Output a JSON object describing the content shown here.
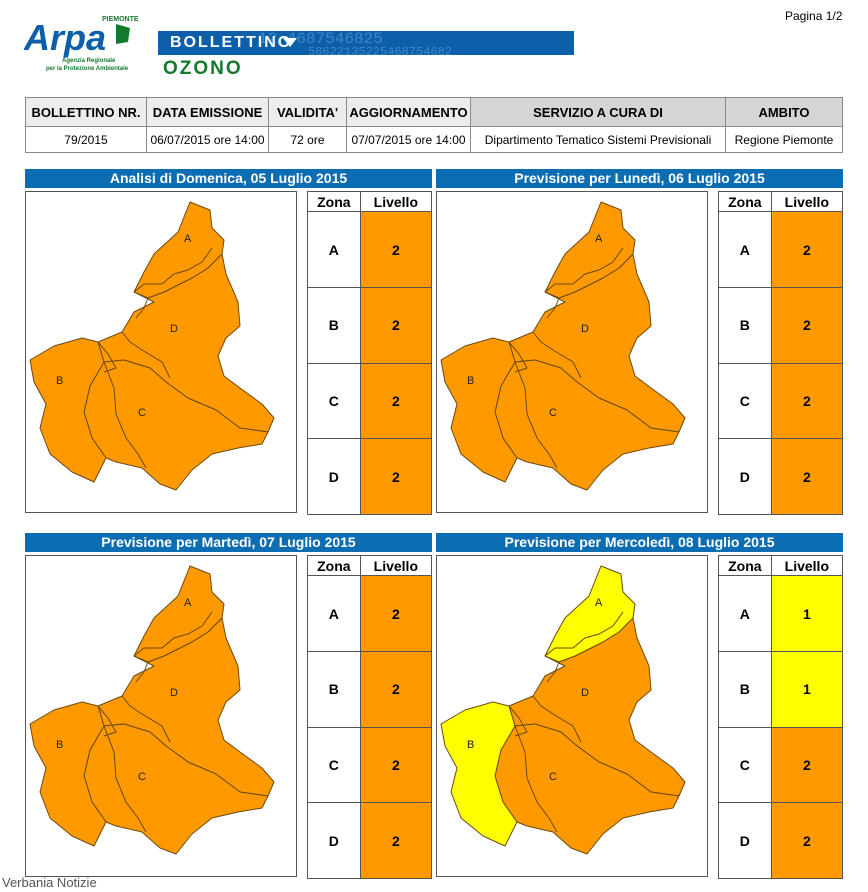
{
  "header": {
    "logo_text": "Arpa",
    "logo_region": "PIEMONTE",
    "logo_subtitle_1": "Agenzia Regionale",
    "logo_subtitle_2": "per la Protezione Ambientale",
    "banner_title": "BOLLETTINO",
    "banner_digits_1": "12 4687546825",
    "banner_digits_2": "58622135225468754682",
    "product": "OZONO",
    "page": "Pagina 1/2"
  },
  "info": {
    "headers": [
      "BOLLETTINO NR.",
      "DATA EMISSIONE",
      "VALIDITA'",
      "AGGIORNAMENTO",
      "SERVIZIO A CURA DI",
      "AMBITO"
    ],
    "values": [
      "79/2015",
      "06/07/2015 ore 14:00",
      "72 ore",
      "07/07/2015 ore 14:00",
      "Dipartimento Tematico Sistemi Previsionali",
      "Regione Piemonte"
    ]
  },
  "table_headers": {
    "zone": "Zona",
    "level": "Livello"
  },
  "colors": {
    "level_1": "#ffff00",
    "level_2": "#ff9900",
    "title_bar": "#0c6db3",
    "banner": "#0c5fa8"
  },
  "panels": [
    {
      "title": "Analisi di Domenica, 05 Luglio 2015",
      "zones": [
        {
          "zone": "A",
          "level": "2"
        },
        {
          "zone": "B",
          "level": "2"
        },
        {
          "zone": "C",
          "level": "2"
        },
        {
          "zone": "D",
          "level": "2"
        }
      ]
    },
    {
      "title": "Previsione per Lunedì, 06 Luglio 2015",
      "zones": [
        {
          "zone": "A",
          "level": "2"
        },
        {
          "zone": "B",
          "level": "2"
        },
        {
          "zone": "C",
          "level": "2"
        },
        {
          "zone": "D",
          "level": "2"
        }
      ]
    },
    {
      "title": "Previsione per Martedì, 07 Luglio 2015",
      "zones": [
        {
          "zone": "A",
          "level": "2"
        },
        {
          "zone": "B",
          "level": "2"
        },
        {
          "zone": "C",
          "level": "2"
        },
        {
          "zone": "D",
          "level": "2"
        }
      ]
    },
    {
      "title": "Previsione per Mercoledì, 08 Luglio 2015",
      "zones": [
        {
          "zone": "A",
          "level": "1"
        },
        {
          "zone": "B",
          "level": "1"
        },
        {
          "zone": "C",
          "level": "2"
        },
        {
          "zone": "D",
          "level": "2"
        }
      ]
    }
  ],
  "watermark": "Verbania Notizie"
}
